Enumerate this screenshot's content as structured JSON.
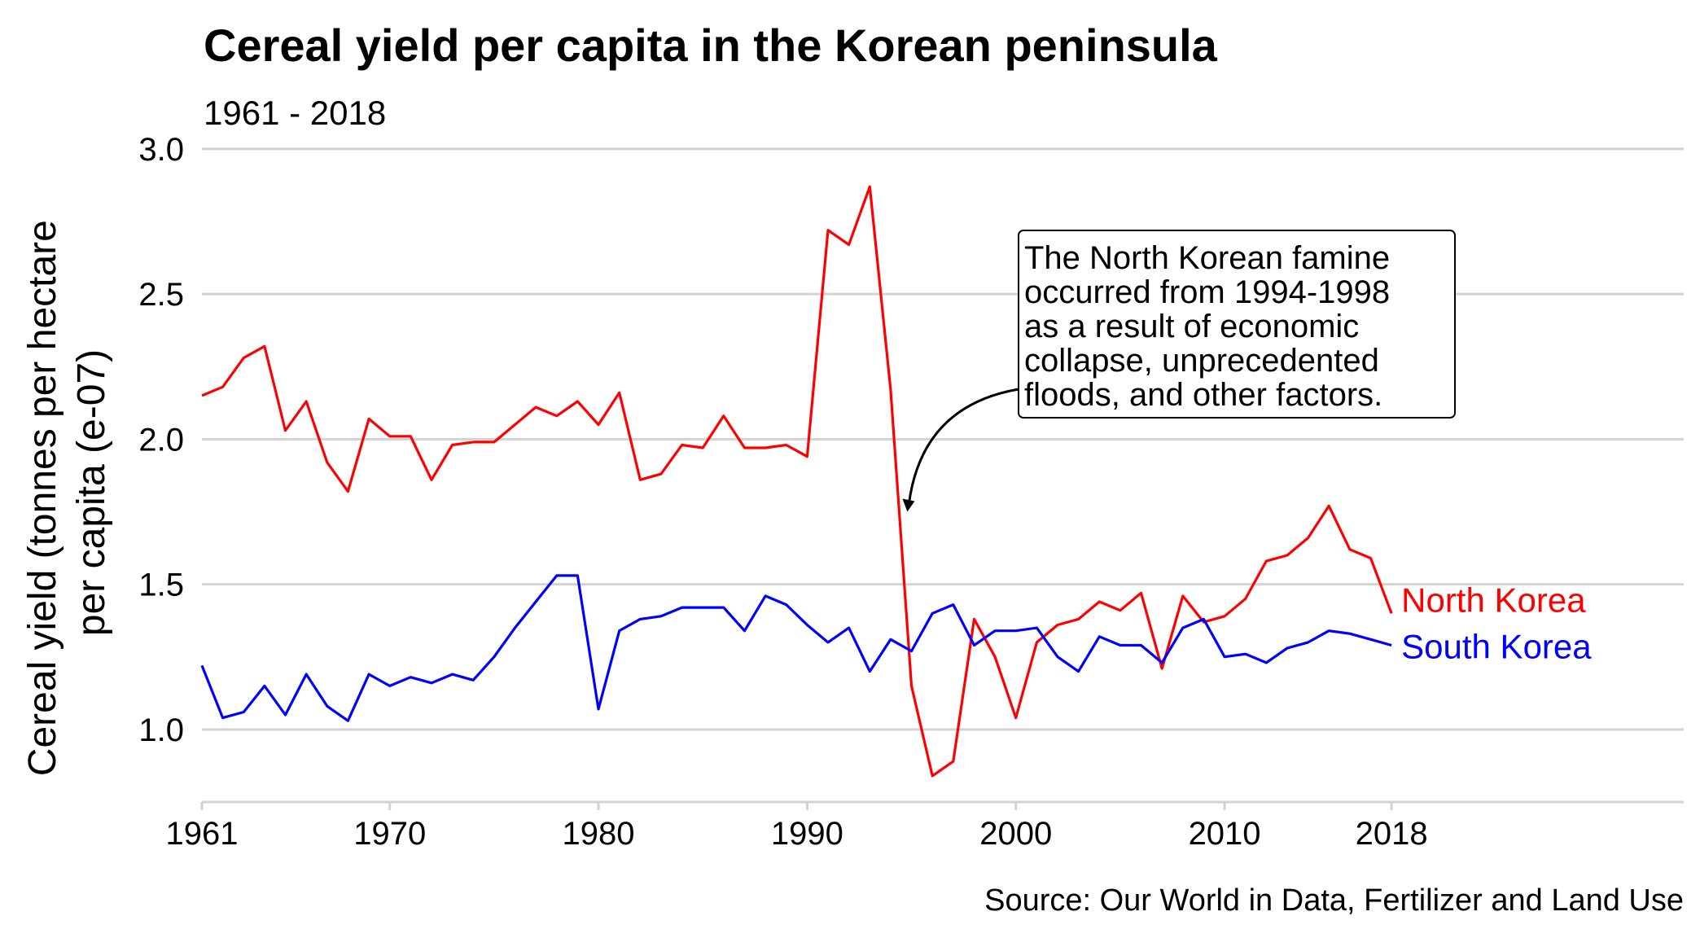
{
  "chart_data": {
    "type": "line",
    "title": "Cereal yield per capita in the Korean peninsula",
    "subtitle": "1961 - 2018",
    "ylabel_lines": [
      "Cereal yield (tonnes per hectare",
      "per capita (e-07)"
    ],
    "caption": "Source: Our World in Data, Fertilizer and Land Use",
    "xlim": [
      1961,
      2032
    ],
    "ylim": [
      0.75,
      3.05
    ],
    "x_ticks": [
      {
        "value": 1961,
        "label": "1961"
      },
      {
        "value": 1970,
        "label": "1970"
      },
      {
        "value": 1980,
        "label": "1980"
      },
      {
        "value": 1990,
        "label": "1990"
      },
      {
        "value": 2000,
        "label": "2000"
      },
      {
        "value": 2010,
        "label": "2010"
      },
      {
        "value": 2018,
        "label": "2018"
      }
    ],
    "y_ticks": [
      {
        "value": 1.0,
        "label": "1.0"
      },
      {
        "value": 1.5,
        "label": "1.5"
      },
      {
        "value": 2.0,
        "label": "2.0"
      },
      {
        "value": 2.5,
        "label": "2.5"
      },
      {
        "value": 3.0,
        "label": "3.0"
      }
    ],
    "grid": true,
    "legend": "direct labels at line ends",
    "x": [
      1961,
      1962,
      1963,
      1964,
      1965,
      1966,
      1967,
      1968,
      1969,
      1970,
      1971,
      1972,
      1973,
      1974,
      1975,
      1976,
      1977,
      1978,
      1979,
      1980,
      1981,
      1982,
      1983,
      1984,
      1985,
      1986,
      1987,
      1988,
      1989,
      1990,
      1991,
      1992,
      1993,
      1994,
      1995,
      1996,
      1997,
      1998,
      1999,
      2000,
      2001,
      2002,
      2003,
      2004,
      2005,
      2006,
      2007,
      2008,
      2009,
      2010,
      2011,
      2012,
      2013,
      2014,
      2015,
      2016,
      2017,
      2018
    ],
    "series": [
      {
        "name": "North Korea",
        "color": "#ff0000",
        "values": [
          2.15,
          2.18,
          2.28,
          2.32,
          2.03,
          2.13,
          1.92,
          1.82,
          2.07,
          2.01,
          2.01,
          1.86,
          1.98,
          1.99,
          1.99,
          2.05,
          2.11,
          2.08,
          2.13,
          2.05,
          2.16,
          1.86,
          1.88,
          1.98,
          1.97,
          2.08,
          1.97,
          1.97,
          1.98,
          1.94,
          2.72,
          2.67,
          2.87,
          2.17,
          1.15,
          0.84,
          0.89,
          1.38,
          1.25,
          1.04,
          1.3,
          1.36,
          1.38,
          1.44,
          1.41,
          1.47,
          1.21,
          1.46,
          1.37,
          1.39,
          1.45,
          1.58,
          1.6,
          1.66,
          1.77,
          1.62,
          1.59,
          1.4
        ]
      },
      {
        "name": "South Korea",
        "color": "#0000ff",
        "values": [
          1.22,
          1.04,
          1.06,
          1.15,
          1.05,
          1.19,
          1.08,
          1.03,
          1.19,
          1.15,
          1.18,
          1.16,
          1.19,
          1.17,
          1.25,
          1.35,
          1.44,
          1.53,
          1.53,
          1.07,
          1.34,
          1.38,
          1.39,
          1.42,
          1.42,
          1.42,
          1.34,
          1.46,
          1.43,
          1.36,
          1.3,
          1.35,
          1.2,
          1.31,
          1.27,
          1.4,
          1.43,
          1.29,
          1.34,
          1.34,
          1.35,
          1.25,
          1.2,
          1.32,
          1.29,
          1.29,
          1.23,
          1.35,
          1.38,
          1.25,
          1.26,
          1.23,
          1.28,
          1.3,
          1.34,
          1.33,
          1.31,
          1.29
        ]
      }
    ],
    "annotation": {
      "lines": [
        "The North Korean famine",
        "occurred from 1994-1998",
        "as a result of economic",
        "collapse, unprecedented",
        "floods, and other factors."
      ],
      "arrow_target": {
        "x": 1994.8,
        "y": 1.75
      }
    }
  }
}
